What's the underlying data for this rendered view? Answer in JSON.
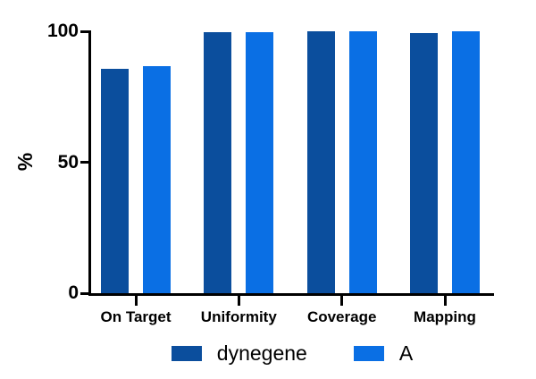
{
  "figure": {
    "background_color": "#ffffff",
    "axis_color": "#000000",
    "text_color": "#000000"
  },
  "chart_data": {
    "type": "bar",
    "title": "",
    "xlabel": "",
    "ylabel": "%",
    "categories": [
      "On Target",
      "Uniformity",
      "Coverage",
      "Mapping"
    ],
    "series": [
      {
        "name": "dynegene",
        "color": "#0b4e9d",
        "values": [
          85.8,
          99.8,
          100,
          99.3
        ]
      },
      {
        "name": "A",
        "color": "#0a6fe4",
        "values": [
          86.8,
          99.6,
          100,
          100
        ]
      }
    ],
    "ylim": [
      0,
      100
    ],
    "yticks": [
      0,
      50,
      100
    ],
    "grid": false,
    "legend_position": "bottom"
  }
}
